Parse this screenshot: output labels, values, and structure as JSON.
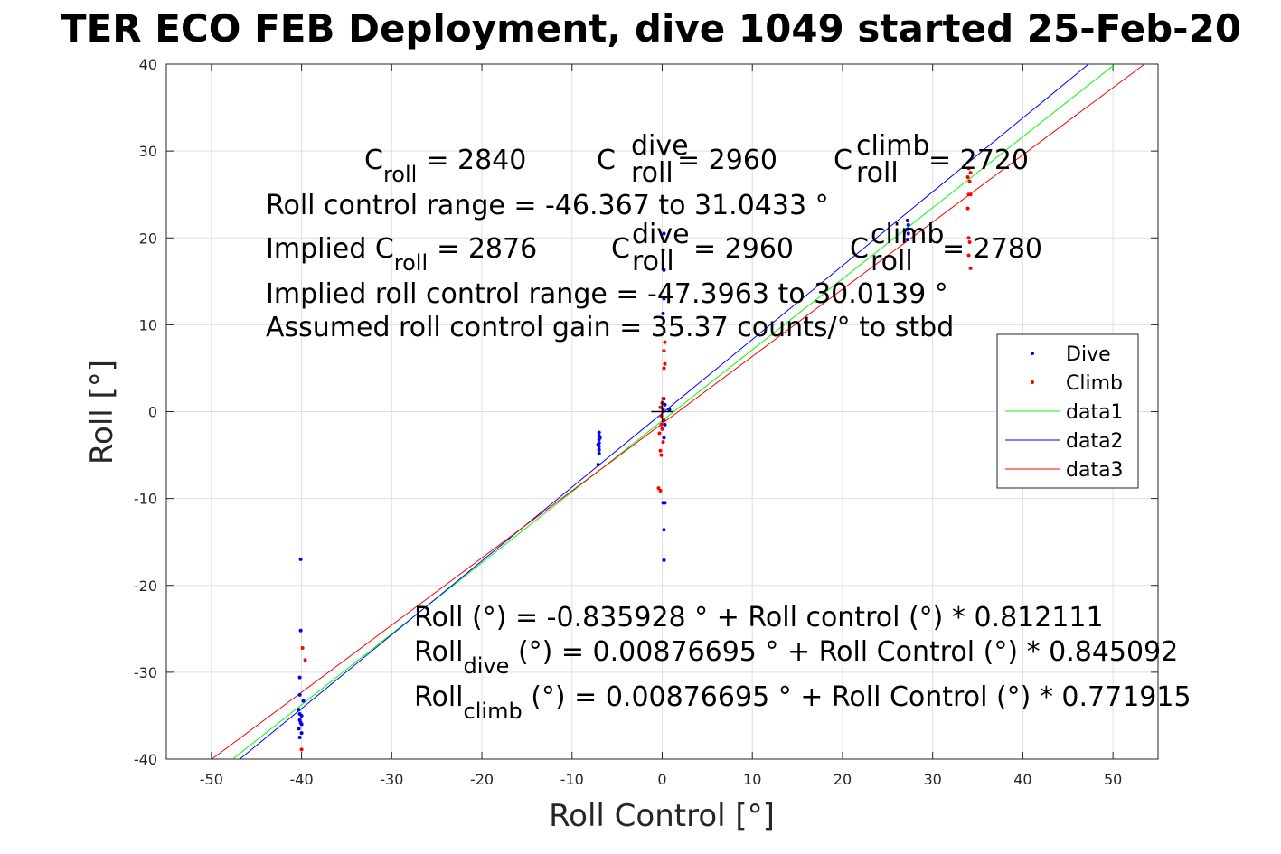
{
  "chart_data": {
    "type": "scatter",
    "title": "TER ECO FEB Deployment, dive 1049 started 25-Feb-20",
    "xlabel": "Roll Control [°]",
    "ylabel": "Roll [°]",
    "xlim": [
      -55,
      55
    ],
    "ylim": [
      -40,
      40
    ],
    "xticks": [
      -50,
      -40,
      -30,
      -20,
      -10,
      0,
      10,
      20,
      30,
      40,
      50
    ],
    "yticks": [
      -40,
      -30,
      -20,
      -10,
      0,
      10,
      20,
      30,
      40
    ],
    "grid": true,
    "legend_position": "right",
    "series": [
      {
        "name": "Dive",
        "kind": "points",
        "color": "#0000ff",
        "points": [
          [
            -40.1,
            -17
          ],
          [
            -40.1,
            -25.2
          ],
          [
            -40.2,
            -30.6
          ],
          [
            -40.2,
            -32.6
          ],
          [
            -39.8,
            -33.3
          ],
          [
            -40.3,
            -34.3
          ],
          [
            -40,
            -35
          ],
          [
            -40.2,
            -35.5
          ],
          [
            -40,
            -36
          ],
          [
            -40.3,
            -36.5
          ],
          [
            -40,
            -37
          ],
          [
            -40.2,
            -37.5
          ],
          [
            -40.1,
            -35.8
          ],
          [
            -40.2,
            -34.8
          ],
          [
            -7,
            -2.4
          ],
          [
            -7,
            -2.8
          ],
          [
            -7,
            -3.2
          ],
          [
            -7,
            -3.6
          ],
          [
            -7,
            -4
          ],
          [
            -7,
            -4.4
          ],
          [
            -7,
            -4.8
          ],
          [
            -7.1,
            -6.1
          ],
          [
            -6.9,
            -3
          ],
          [
            -7.1,
            -3.8
          ],
          [
            0.2,
            20.5
          ],
          [
            0.1,
            18.6
          ],
          [
            0.2,
            16.3
          ],
          [
            0.2,
            13
          ],
          [
            0.1,
            11.3
          ],
          [
            0.2,
            1.5
          ],
          [
            0.3,
            0.8
          ],
          [
            0.1,
            0.3
          ],
          [
            0.8,
            0.2
          ],
          [
            0.3,
            -1.5
          ],
          [
            0.2,
            -3
          ],
          [
            0.1,
            -10.5
          ],
          [
            0.3,
            -10.5
          ],
          [
            0.2,
            -13.6
          ],
          [
            0.2,
            -17.1
          ],
          [
            27.2,
            22
          ],
          [
            27.3,
            21.5
          ],
          [
            27.2,
            21
          ],
          [
            27.3,
            20.5
          ],
          [
            27.2,
            19.8
          ]
        ]
      },
      {
        "name": "Climb",
        "kind": "points",
        "color": "#ff0000",
        "points": [
          [
            -39.9,
            -27.2
          ],
          [
            -39.6,
            -28.6
          ],
          [
            -40,
            -38.9
          ],
          [
            0.3,
            8
          ],
          [
            0.2,
            7
          ],
          [
            0.3,
            5.5
          ],
          [
            0.2,
            5
          ],
          [
            0.1,
            1.5
          ],
          [
            0,
            1
          ],
          [
            -0.2,
            0.5
          ],
          [
            0.1,
            0
          ],
          [
            -0.1,
            -0.5
          ],
          [
            0.2,
            -1
          ],
          [
            -0.1,
            -1.5
          ],
          [
            0,
            -2
          ],
          [
            -0.3,
            -2.5
          ],
          [
            0.1,
            -3.5
          ],
          [
            -0.2,
            -4.5
          ],
          [
            -0.1,
            -5
          ],
          [
            -0.4,
            -8.8
          ],
          [
            -0.2,
            -9.1
          ],
          [
            34,
            28
          ],
          [
            34.2,
            27.5
          ],
          [
            33.9,
            27
          ],
          [
            34.1,
            26.5
          ],
          [
            34,
            25
          ],
          [
            34.2,
            25
          ],
          [
            33.9,
            23.4
          ],
          [
            34,
            20
          ],
          [
            34.1,
            19.5
          ],
          [
            34,
            18
          ],
          [
            34.2,
            16.5
          ]
        ]
      },
      {
        "name": "data1",
        "kind": "line",
        "color": "#00ff00",
        "x": [
          -47.65,
          50.23
        ],
        "y": [
          -40,
          40
        ]
      },
      {
        "name": "data2",
        "kind": "line",
        "color": "#0000ff",
        "x": [
          -46.85,
          47.29
        ],
        "y": [
          -40,
          40
        ]
      },
      {
        "name": "data3",
        "kind": "line",
        "color": "#ff0000",
        "x": [
          -49.95,
          53.5
        ],
        "y": [
          -40,
          40
        ]
      }
    ],
    "crosshair": {
      "x": 0,
      "y": 0
    }
  },
  "annotations": {
    "croll": {
      "main": "C",
      "sub": "roll",
      "value": "= 2840"
    },
    "croll_dive": {
      "main": "C",
      "sup": "dive",
      "sub": "roll",
      "value": "= 2960"
    },
    "croll_climb": {
      "main": "C",
      "sup": "climb",
      "sub": "roll",
      "value": "= 2720"
    },
    "range": "Roll control range = -46.367 to 31.0433 °",
    "implied_prefix": "Implied C",
    "implied_sub": "roll",
    "implied_value": "= 2876",
    "implied_dive": {
      "main": "C",
      "sup": "dive",
      "sub": "roll",
      "value": "= 2960"
    },
    "implied_climb": {
      "main": "C",
      "sup": "climb",
      "sub": "roll",
      "value": "= 2780"
    },
    "implied_range": "Implied roll control range = -47.3963 to 30.0139 °",
    "gain": "Assumed roll control gain = 35.37 counts/° to stbd",
    "fit_all": "Roll (°) = -0.835928 ° + Roll control (°) * 0.812111",
    "fit_dive": {
      "main": "Roll",
      "sub": "dive",
      "rest": " (°) = 0.00876695 ° + Roll Control (°) * 0.845092"
    },
    "fit_climb": {
      "main": "Roll",
      "sub": "climb",
      "rest": " (°) = 0.00876695 ° + Roll Control (°) * 0.771915"
    }
  }
}
